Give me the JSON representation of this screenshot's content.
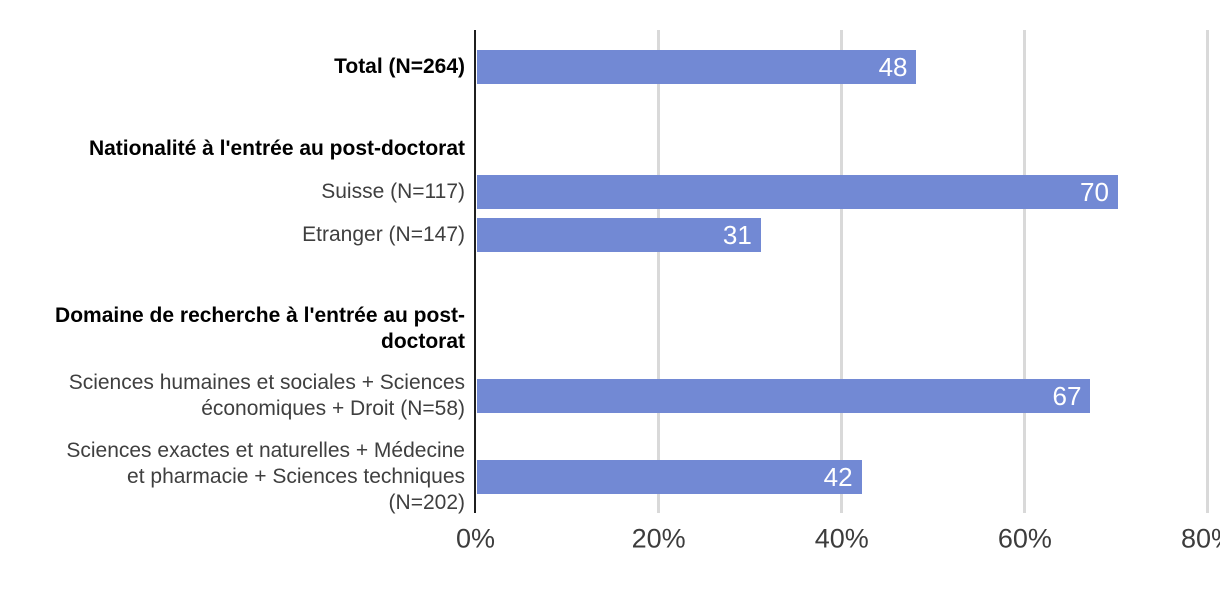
{
  "chart_data": {
    "type": "bar",
    "orientation": "horizontal",
    "title": "",
    "xlabel": "",
    "ylabel": "",
    "xlim": [
      0,
      80
    ],
    "x_tick_labels": [
      "0%",
      "20%",
      "40%",
      "60%",
      "80%"
    ],
    "grid": true,
    "value_suffix": "%",
    "categories": [
      "Total (N=264)",
      "Suisse (N=117)",
      "Etranger (N=147)",
      "Sciences humaines et sociales + Sciences économiques + Droit (N=58)",
      "Sciences exactes et naturelles + Médecine et pharmacie + Sciences techniques (N=202)"
    ],
    "values": [
      48,
      70,
      31,
      67,
      42
    ],
    "group_headers": [
      "Nationalité à l'entrée au post-doctorat",
      "Domaine de recherche à l'entrée au post-doctorat"
    ],
    "rows": [
      {
        "kind": "bar",
        "label": "Total (N=264)",
        "label_lines": [
          "Total (N=264)"
        ],
        "bold": true,
        "value": 48
      },
      {
        "kind": "header",
        "label": "Nationalité à l'entrée au post-doctorat",
        "label_lines": [
          "Nationalité à l'entrée au post-doctorat"
        ]
      },
      {
        "kind": "bar",
        "label": "Suisse (N=117)",
        "label_lines": [
          "Suisse (N=117)"
        ],
        "bold": false,
        "value": 70
      },
      {
        "kind": "bar",
        "label": "Etranger (N=147)",
        "label_lines": [
          "Etranger (N=147)"
        ],
        "bold": false,
        "value": 31
      },
      {
        "kind": "header",
        "label": "Domaine de recherche à l'entrée au post-doctorat",
        "label_lines": [
          "Domaine de recherche à l'entrée au post-",
          "doctorat"
        ]
      },
      {
        "kind": "bar",
        "label": "Sciences humaines et sociales + Sciences économiques + Droit (N=58)",
        "label_lines": [
          "Sciences humaines et sociales + Sciences",
          "économiques + Droit (N=58)"
        ],
        "bold": false,
        "value": 67
      },
      {
        "kind": "bar",
        "label": "Sciences exactes et naturelles + Médecine et pharmacie + Sciences techniques (N=202)",
        "label_lines": [
          "Sciences exactes et naturelles + Médecine",
          "et pharmacie + Sciences techniques",
          "(N=202)"
        ],
        "bold": false,
        "value": 42
      }
    ],
    "colors": {
      "bar": "#7289d4",
      "value_label": "#ffffff",
      "gridline": "#d9d9d9",
      "axis_line": "#1f1f1f",
      "label_bold": "#000000",
      "label_regular": "#3f3f3f",
      "tick_label": "#3c3c3c"
    }
  }
}
